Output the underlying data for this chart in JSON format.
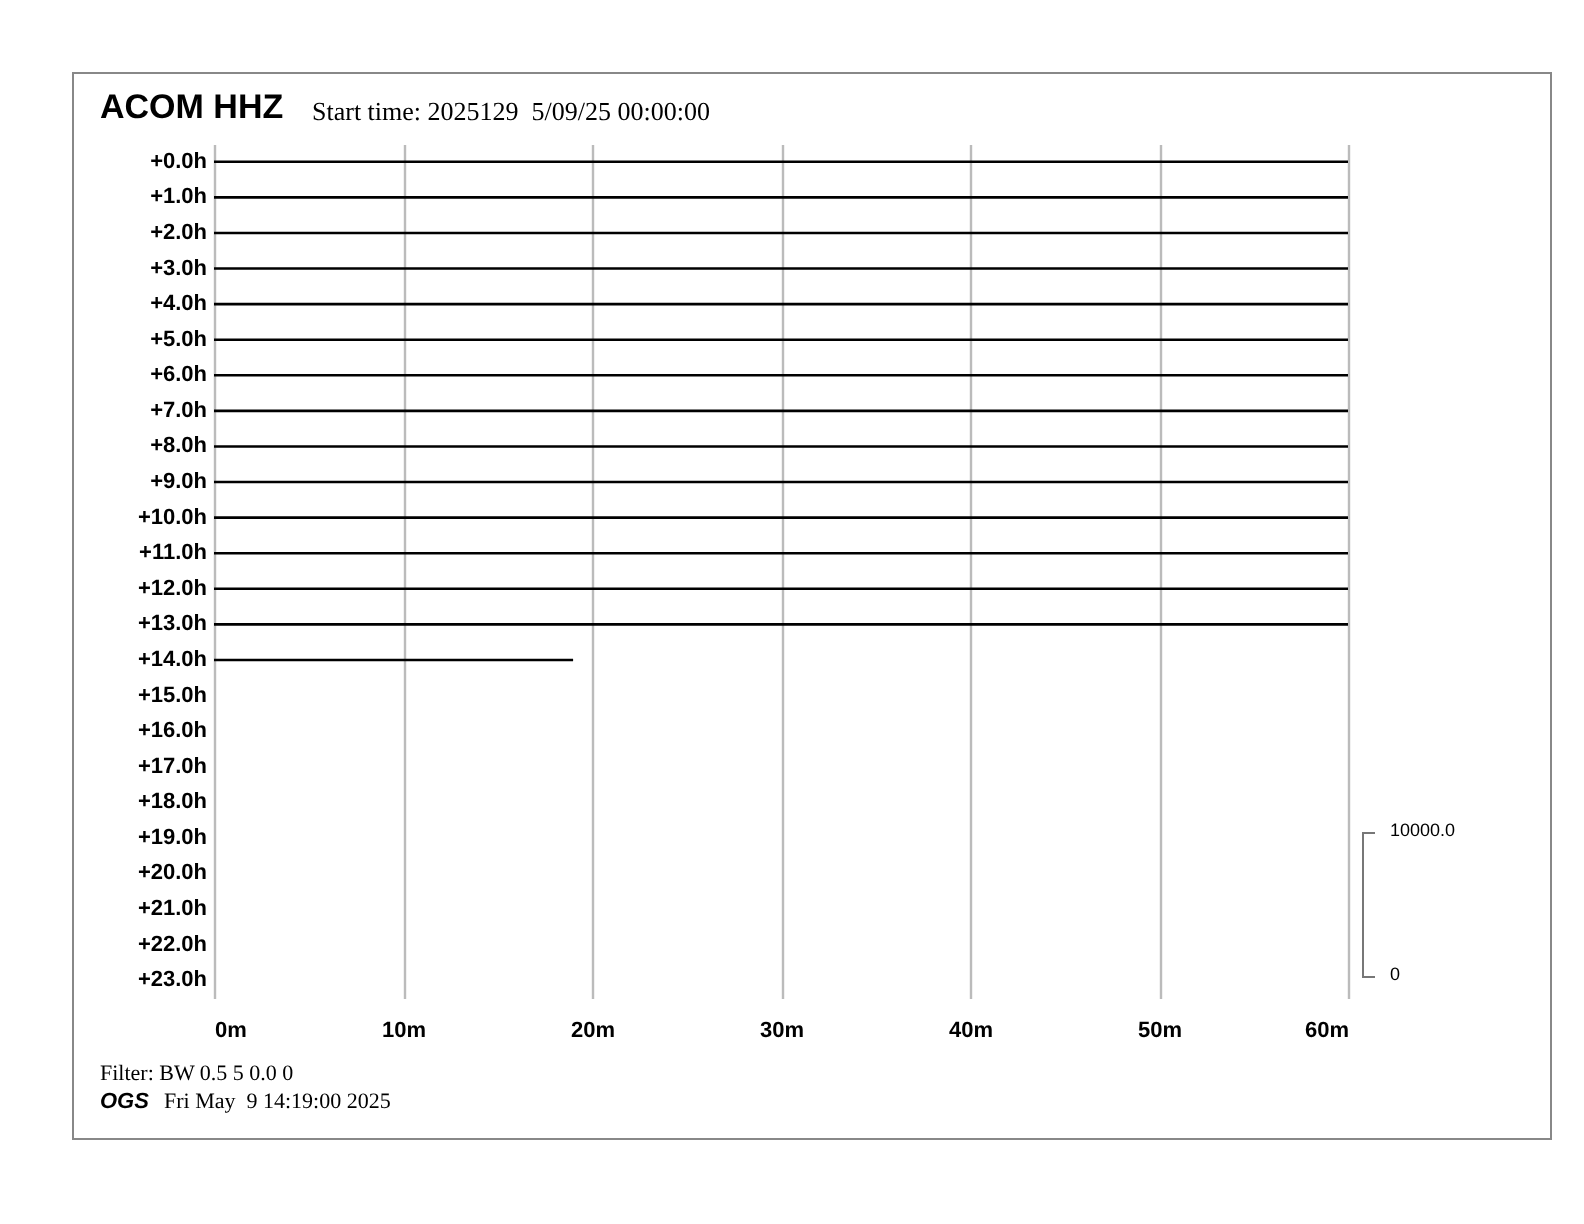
{
  "chart_data": {
    "type": "bar",
    "orientation": "horizontal",
    "title": "ACOM HHZ",
    "subtitle": "Start time: 2025129  5/09/25 00:00:00",
    "categories": [
      "+0.0h",
      "+1.0h",
      "+2.0h",
      "+3.0h",
      "+4.0h",
      "+5.0h",
      "+6.0h",
      "+7.0h",
      "+8.0h",
      "+9.0h",
      "+10.0h",
      "+11.0h",
      "+12.0h",
      "+13.0h",
      "+14.0h",
      "+15.0h",
      "+16.0h",
      "+17.0h",
      "+18.0h",
      "+19.0h",
      "+20.0h",
      "+21.0h",
      "+22.0h",
      "+23.0h"
    ],
    "values": [
      60,
      60,
      60,
      60,
      60,
      60,
      60,
      60,
      60,
      60,
      60,
      60,
      60,
      60,
      19,
      null,
      null,
      null,
      null,
      null,
      null,
      null,
      null,
      null
    ],
    "color": "#000000",
    "xlim": [
      0,
      60
    ],
    "xticks": [
      {
        "value": 0,
        "label": "0m"
      },
      {
        "value": 10,
        "label": "10m"
      },
      {
        "value": 20,
        "label": "20m"
      },
      {
        "value": 30,
        "label": "30m"
      },
      {
        "value": 40,
        "label": "40m"
      },
      {
        "value": 50,
        "label": "50m"
      },
      {
        "value": 60,
        "label": "60m"
      }
    ],
    "grid": "x",
    "annotations": [
      "Filter: BW 0.5 5 0.0 0",
      "OGS",
      "Fri May  9 14:19:00 2025",
      "10000.0",
      "0"
    ]
  }
}
